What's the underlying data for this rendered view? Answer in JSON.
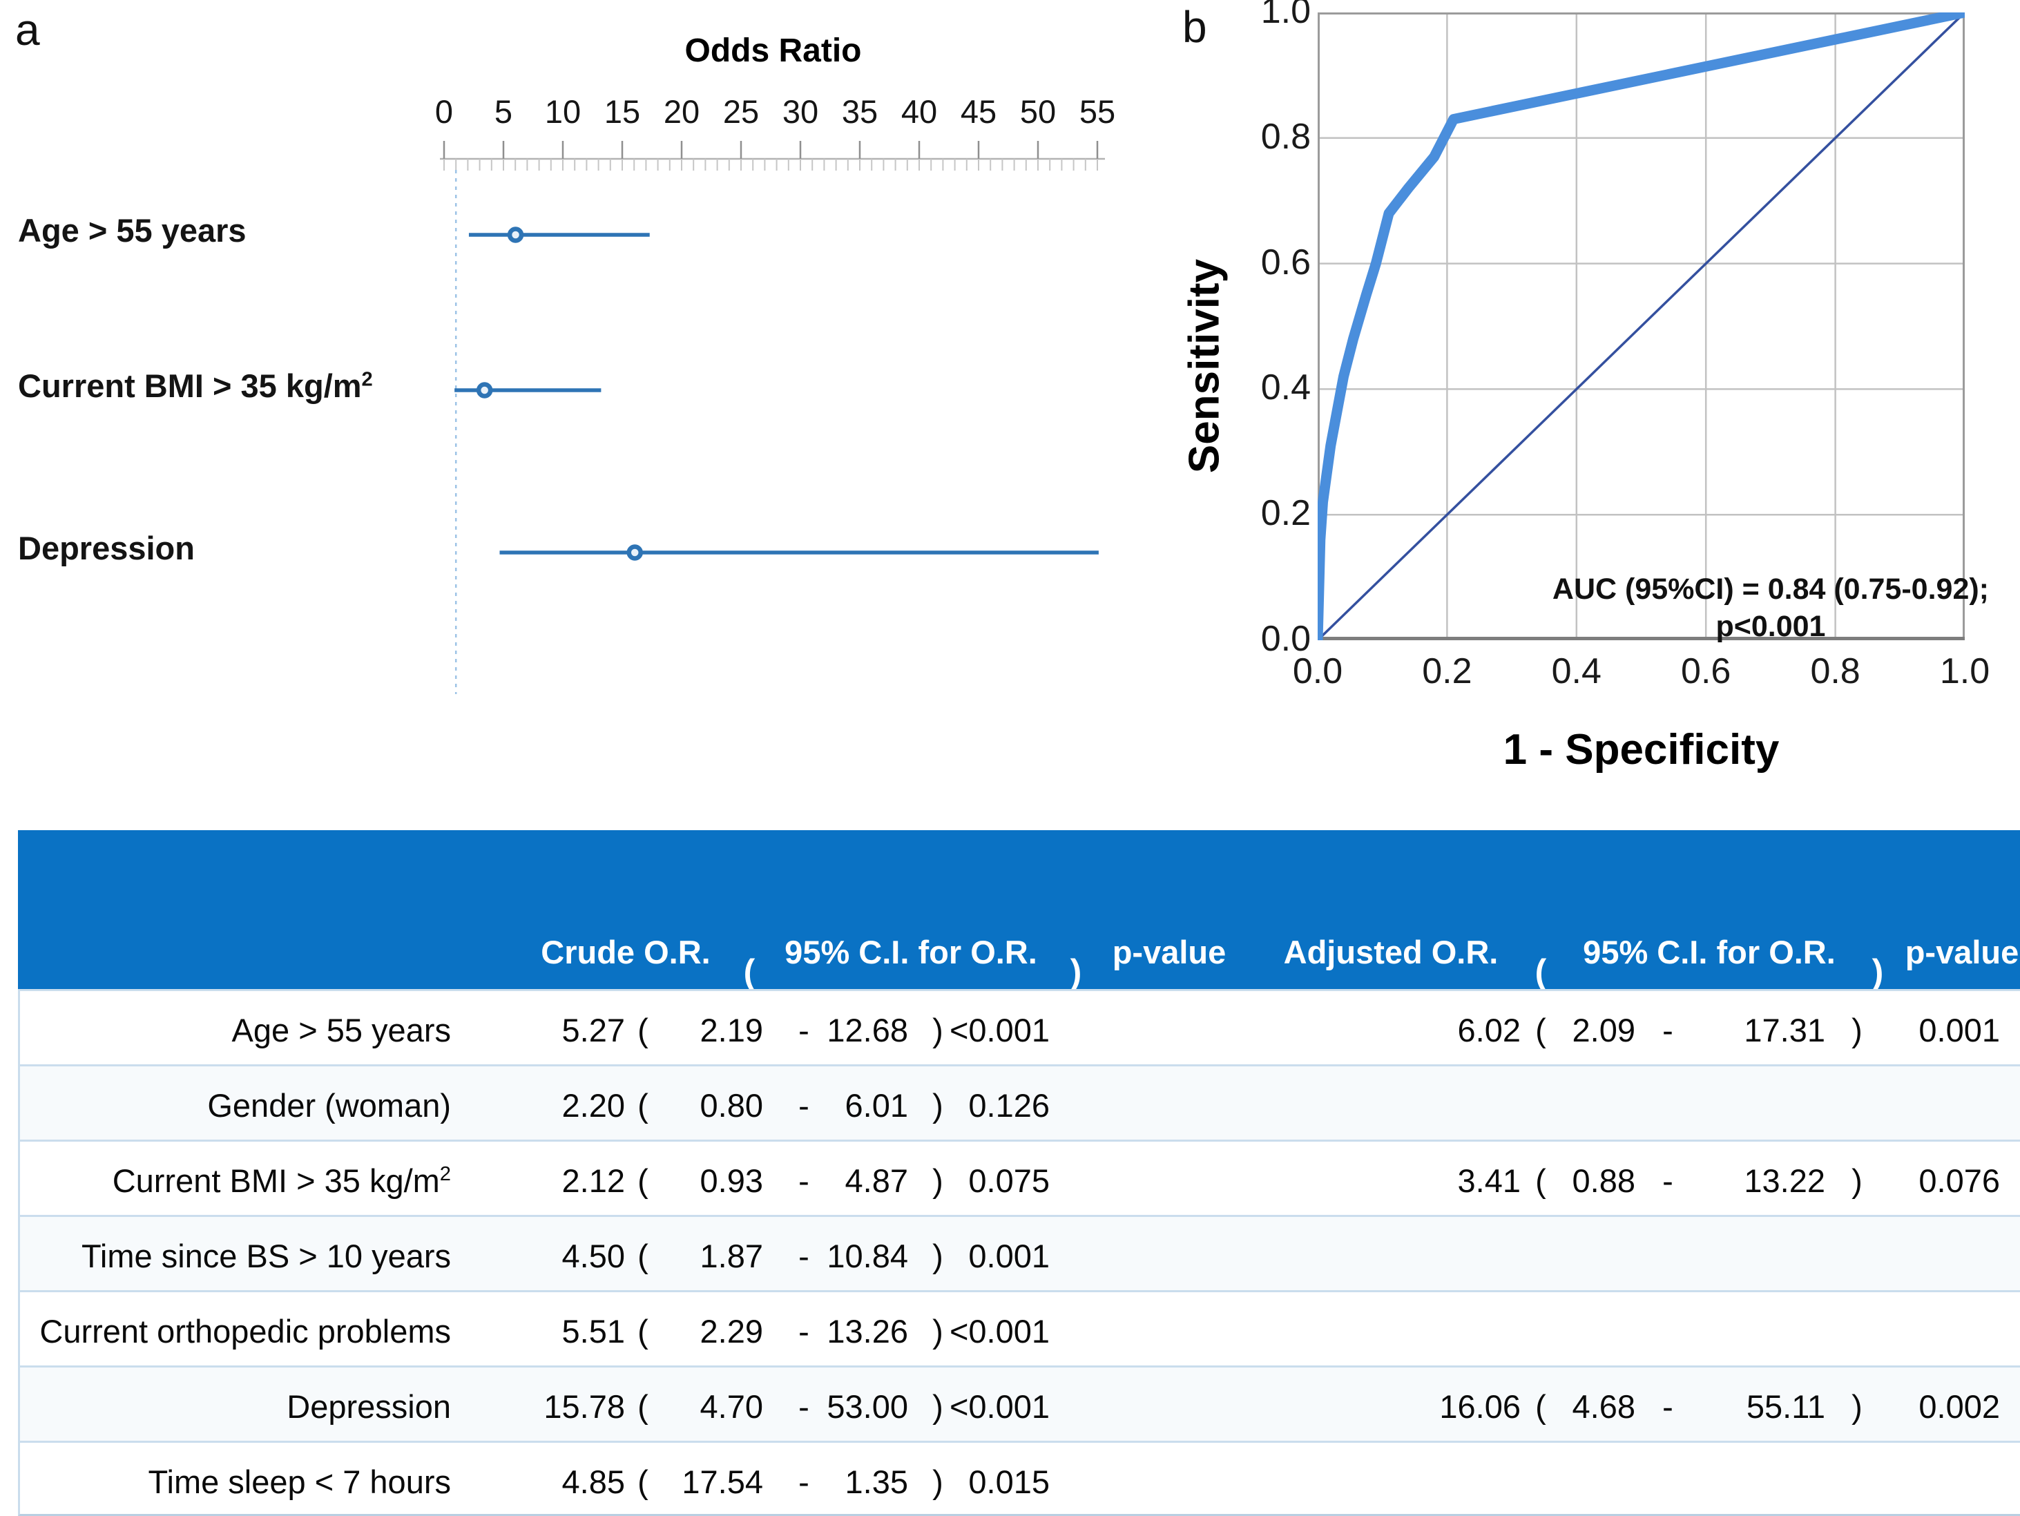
{
  "figure": {
    "panel_a_label": "a",
    "panel_b_label": "b"
  },
  "colors": {
    "forest_blue": "#2E74B5",
    "forest_marker_fill": "#E9F1F9",
    "forest_ref_dash": "#9DC3E6",
    "ruler_line": "#b3b3b3",
    "ruler_major": "#8f8f8f",
    "ruler_minor": "#c6c6c6",
    "roc_curve_blue": "#4A8EDC",
    "roc_diagonal_navy": "#34509F",
    "roc_grid": "#c2c2c2",
    "roc_border": "#9b9b9b",
    "roc_axis_dark": "#7d7d7d",
    "header_blue": "#0A72C4",
    "row_separator": "#cadded"
  },
  "chart_data": [
    {
      "type": "forest",
      "title": "Odds Ratio",
      "x_ticks": [
        0,
        5,
        10,
        15,
        20,
        25,
        30,
        35,
        40,
        45,
        50,
        55
      ],
      "xlim": [
        0,
        55
      ],
      "minor_tick_step": 1,
      "reference_line": 1,
      "rows": [
        {
          "label": "Age > 55 years",
          "or": 6.02,
          "ci": [
            2.09,
            17.31
          ]
        },
        {
          "label": "Current BMI > 35 kg/m",
          "label_sup": "2",
          "or": 3.41,
          "ci": [
            0.88,
            13.22
          ]
        },
        {
          "label": "Depression",
          "or": 16.06,
          "ci": [
            4.68,
            55.11
          ]
        }
      ]
    },
    {
      "type": "line",
      "xlabel": "1 - Specificity",
      "ylabel": "Sensitivity",
      "x_ticks": [
        "0.0",
        "0.2",
        "0.4",
        "0.6",
        "0.8",
        "1.0"
      ],
      "y_ticks": [
        "0.0",
        "0.2",
        "0.4",
        "0.6",
        "0.8",
        "1.0"
      ],
      "xlim": [
        0,
        1
      ],
      "ylim": [
        0,
        1
      ],
      "grid": true,
      "annotation": [
        "AUC (95%CI) = 0.84 (0.75-0.92);",
        "p<0.001"
      ],
      "series": [
        {
          "name": "ROC curve",
          "points": [
            [
              0,
              0
            ],
            [
              0.004,
              0.16
            ],
            [
              0.008,
              0.22
            ],
            [
              0.02,
              0.31
            ],
            [
              0.04,
              0.42
            ],
            [
              0.055,
              0.48
            ],
            [
              0.075,
              0.55
            ],
            [
              0.09,
              0.6
            ],
            [
              0.11,
              0.68
            ],
            [
              0.14,
              0.72
            ],
            [
              0.18,
              0.77
            ],
            [
              0.21,
              0.83
            ],
            [
              1.0,
              1.0
            ]
          ]
        },
        {
          "name": "reference diagonal",
          "points": [
            [
              0,
              0
            ],
            [
              1,
              1
            ]
          ]
        }
      ]
    }
  ],
  "table": {
    "paren_open": "(",
    "paren_close": ")",
    "ci_dash": "-",
    "header": {
      "crude_or": "Crude O.R.",
      "paren_open_1": "(",
      "ci_1": "95% C.I. for O.R.",
      "paren_close_1": ")",
      "p_1": "p-value",
      "adjusted_or": "Adjusted O.R.",
      "paren_open_2": "(",
      "ci_2": "95% C.I. for O.R.",
      "paren_close_2": ")",
      "p_2": "p-value"
    },
    "rows": [
      {
        "label": "Age > 55 years",
        "crude_or": "5.27",
        "ci_low": "2.19",
        "ci_high": "12.68",
        "p": "<0.001",
        "adj_or": "6.02",
        "adj_low": "2.09",
        "adj_high": "17.31",
        "adj_p": "0.001"
      },
      {
        "label": "Gender (woman)",
        "crude_or": "2.20",
        "ci_low": "0.80",
        "ci_high": "6.01",
        "p": "0.126"
      },
      {
        "label": "Current BMI > 35 kg/m",
        "label_sup": "2",
        "crude_or": "2.12",
        "ci_low": "0.93",
        "ci_high": "4.87",
        "p": "0.075",
        "adj_or": "3.41",
        "adj_low": "0.88",
        "adj_high": "13.22",
        "adj_p": "0.076"
      },
      {
        "label": "Time since BS > 10 years",
        "crude_or": "4.50",
        "ci_low": "1.87",
        "ci_high": "10.84",
        "p": "0.001"
      },
      {
        "label": "Current orthopedic problems",
        "crude_or": "5.51",
        "ci_low": "2.29",
        "ci_high": "13.26",
        "p": "<0.001"
      },
      {
        "label": "Depression",
        "crude_or": "15.78",
        "ci_low": "4.70",
        "ci_high": "53.00",
        "p": "<0.001",
        "adj_or": "16.06",
        "adj_low": "4.68",
        "adj_high": "55.11",
        "adj_p": "0.002"
      },
      {
        "label": "Time sleep < 7 hours",
        "crude_or": "4.85",
        "ci_low": "17.54",
        "ci_high": "1.35",
        "p": "0.015"
      }
    ]
  }
}
